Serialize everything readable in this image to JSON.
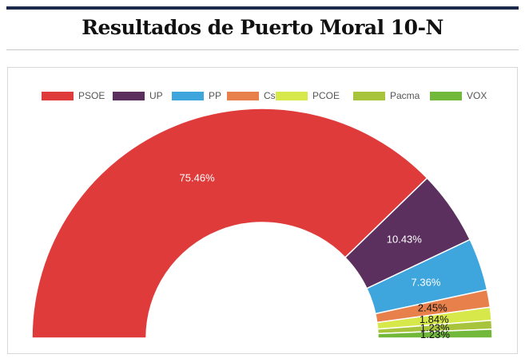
{
  "page": {
    "title": "Resultados de Puerto Moral 10-N"
  },
  "chart_data": {
    "type": "pie",
    "variant": "half-donut",
    "legend_position": "top",
    "categories": [
      "PSOE",
      "UP",
      "PP",
      "Cs",
      "PCOE",
      "Pacma",
      "VOX"
    ],
    "values": [
      75.46,
      10.43,
      7.36,
      2.45,
      1.84,
      1.23,
      1.23
    ],
    "labels": [
      "75.46%",
      "10.43%",
      "7.36%",
      "2.45%",
      "1.84%",
      "1.23%",
      "1.23%"
    ],
    "colors": [
      "#e03b3b",
      "#5b2f5e",
      "#3ea6dd",
      "#e8804c",
      "#d6e84a",
      "#a8c43c",
      "#72b83a"
    ]
  }
}
